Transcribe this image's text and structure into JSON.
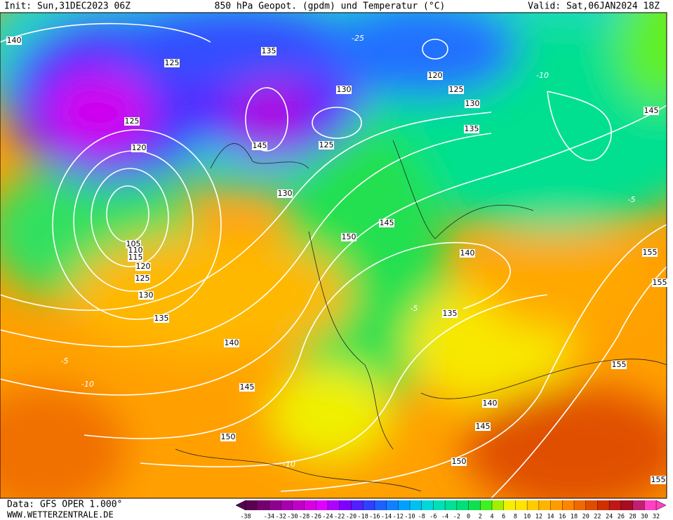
{
  "header": {
    "init": "Init: Sun,31DEC2023 06Z",
    "title": "850 hPa Geopot. (gpdm) und Temperatur (°C)",
    "valid": "Valid: Sat,06JAN2024 18Z"
  },
  "footer": {
    "source": "Data: GFS OPER 1.000°",
    "website": "WWW.WETTERZENTRALE.DE"
  },
  "geopotential_labels": [
    140,
    125,
    135,
    120,
    125,
    130,
    130,
    125,
    135,
    145,
    120,
    145,
    125,
    130,
    145,
    150,
    105,
    110,
    115,
    120,
    125,
    130,
    140,
    155,
    155,
    135,
    135,
    140,
    145,
    155,
    140,
    145,
    150,
    150,
    155
  ],
  "temperature_labels": [
    -25,
    -10,
    -5,
    -10,
    -5,
    -10,
    -5
  ],
  "colorbar": {
    "colors": [
      "#5a0050",
      "#74006e",
      "#8e008e",
      "#a800ac",
      "#c000c8",
      "#d800e0",
      "#e000ff",
      "#b000ff",
      "#8000ff",
      "#5020ff",
      "#3040ff",
      "#2060ff",
      "#1080ff",
      "#00a0ff",
      "#00c0f0",
      "#00d8d8",
      "#00e0b8",
      "#00e098",
      "#00e078",
      "#10e050",
      "#40f020",
      "#a0f000",
      "#f0f000",
      "#ffe400",
      "#ffcc00",
      "#ffb400",
      "#ff9c00",
      "#ff8400",
      "#f06800",
      "#e04c00",
      "#d03000",
      "#c01818",
      "#a80c20",
      "#c02070",
      "#ff40c0"
    ],
    "ticks": [
      -38,
      -34,
      -32,
      -30,
      -28,
      -26,
      -24,
      -22,
      -20,
      -18,
      -16,
      -14,
      -12,
      -10,
      -8,
      -6,
      -4,
      -2,
      0,
      2,
      4,
      6,
      8,
      10,
      12,
      14,
      16,
      18,
      20,
      22,
      24,
      26,
      28,
      30,
      32
    ]
  }
}
